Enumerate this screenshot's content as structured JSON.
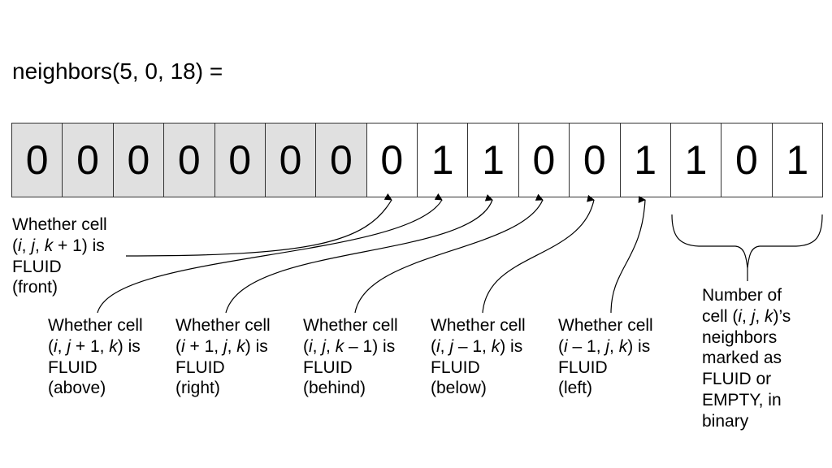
{
  "title": "neighbors(5, 0, 18) =",
  "colors": {
    "padding_cell_bg": "#e0e0e0",
    "cell_bg": "#ffffff",
    "line": "#000000"
  },
  "bits": [
    {
      "value": "0",
      "padding": true
    },
    {
      "value": "0",
      "padding": true
    },
    {
      "value": "0",
      "padding": true
    },
    {
      "value": "0",
      "padding": true
    },
    {
      "value": "0",
      "padding": true
    },
    {
      "value": "0",
      "padding": true
    },
    {
      "value": "0",
      "padding": true
    },
    {
      "value": "0",
      "padding": false
    },
    {
      "value": "1",
      "padding": false
    },
    {
      "value": "1",
      "padding": false
    },
    {
      "value": "0",
      "padding": false
    },
    {
      "value": "0",
      "padding": false
    },
    {
      "value": "1",
      "padding": false
    },
    {
      "value": "1",
      "padding": false
    },
    {
      "value": "0",
      "padding": false
    },
    {
      "value": "1",
      "padding": false
    }
  ],
  "labels": {
    "front": {
      "line1": "Whether cell",
      "pre": "(",
      "coords": [
        {
          "t": "i",
          "it": true
        },
        {
          "t": ", ",
          "it": false
        },
        {
          "t": "j",
          "it": false,
          "ital": true
        },
        {
          "t": ", ",
          "it": false
        },
        {
          "t": "k",
          "it": true
        },
        {
          "t": " + 1) is",
          "it": false
        }
      ],
      "line3": "FLUID",
      "line4": "(front)"
    },
    "above": {
      "line1": "Whether cell",
      "line3": "FLUID",
      "line4": "(above)"
    },
    "right": {
      "line1": "Whether cell",
      "line3": "FLUID",
      "line4": "(right)"
    },
    "behind": {
      "line1": "Whether cell",
      "line3": "FLUID",
      "line4": "(behind)"
    },
    "below": {
      "line1": "Whether cell",
      "line3": "FLUID",
      "line4": "(below)"
    },
    "left": {
      "line1": "Whether cell",
      "line3": "FLUID",
      "line4": "(left)"
    },
    "count": {
      "line1": "Number of",
      "line3": "neighbors",
      "line4": "marked as",
      "line5": "FLUID or",
      "line6": "EMPTY, in",
      "line7": "binary"
    }
  }
}
